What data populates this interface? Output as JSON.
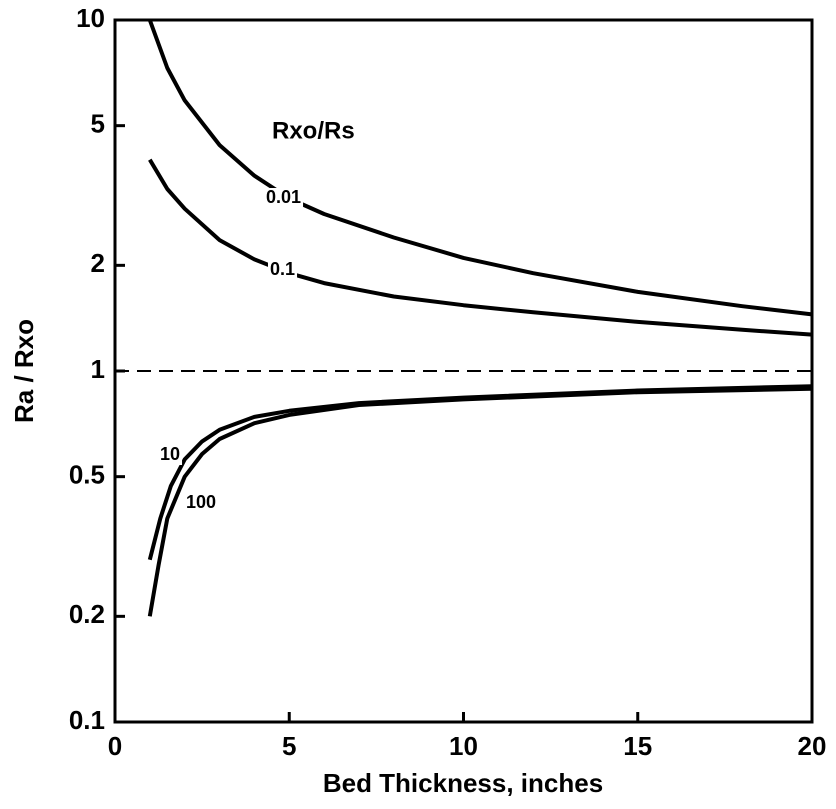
{
  "chart_data": {
    "type": "line",
    "xlabel": "Bed Thickness, inches",
    "ylabel": "Ra / Rxo",
    "annotation": "Rxo/Rs",
    "xlim": [
      0,
      20
    ],
    "xticks": [
      0,
      5,
      10,
      15,
      20
    ],
    "ylim": [
      0.1,
      10
    ],
    "yticks": [
      0.1,
      0.2,
      0.5,
      1,
      2,
      5,
      10
    ],
    "ylog": true,
    "hline": 1,
    "color": "#000000",
    "series": [
      {
        "name": "0.01",
        "x": [
          1,
          1.5,
          2,
          3,
          4,
          5,
          6,
          8,
          10,
          12,
          15,
          18,
          20
        ],
        "values": [
          10,
          7.3,
          5.9,
          4.4,
          3.6,
          3.1,
          2.8,
          2.4,
          2.1,
          1.9,
          1.68,
          1.53,
          1.45
        ]
      },
      {
        "name": "0.1",
        "x": [
          1,
          1.5,
          2,
          3,
          4,
          5,
          6,
          8,
          10,
          12,
          15,
          18,
          20
        ],
        "values": [
          4.0,
          3.3,
          2.9,
          2.36,
          2.08,
          1.9,
          1.78,
          1.63,
          1.54,
          1.47,
          1.38,
          1.31,
          1.27
        ]
      },
      {
        "name": "10",
        "x": [
          1,
          1.3,
          1.6,
          2,
          2.5,
          3,
          4,
          5,
          7,
          10,
          15,
          20
        ],
        "values": [
          0.29,
          0.38,
          0.47,
          0.56,
          0.63,
          0.68,
          0.74,
          0.77,
          0.81,
          0.84,
          0.88,
          0.905
        ]
      },
      {
        "name": "100",
        "x": [
          1,
          1.25,
          1.5,
          2,
          2.5,
          3,
          4,
          5,
          7,
          10,
          15,
          20
        ],
        "values": [
          0.2,
          0.28,
          0.38,
          0.5,
          0.58,
          0.64,
          0.71,
          0.75,
          0.8,
          0.83,
          0.87,
          0.89
        ]
      }
    ]
  }
}
